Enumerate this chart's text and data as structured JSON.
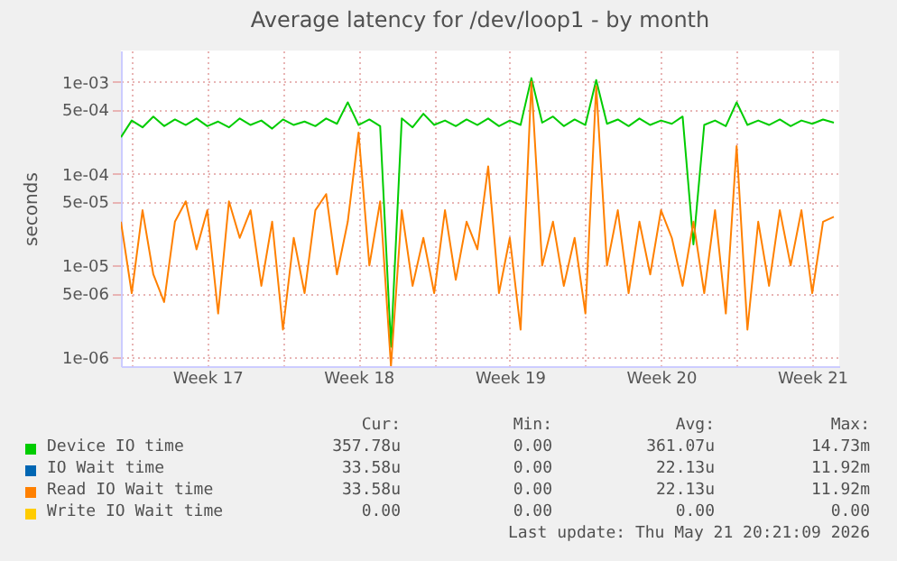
{
  "chart_data": {
    "type": "line",
    "title": "Average latency for /dev/loop1 - by month",
    "ylabel": "seconds",
    "log": "y",
    "grid": true,
    "legend": "bottom",
    "xlim": [
      "2026-04-19T12:00",
      "2026-05-22T18:00"
    ],
    "xticks": [
      {
        "value": "2026-04-20T00:00",
        "label": null
      },
      {
        "value": "2026-04-23T12:00",
        "label": "Week 17"
      },
      {
        "value": "2026-04-27T00:00",
        "label": null
      },
      {
        "value": "2026-04-30T12:00",
        "label": "Week 18"
      },
      {
        "value": "2026-05-04T00:00",
        "label": null
      },
      {
        "value": "2026-05-07T12:00",
        "label": "Week 19"
      },
      {
        "value": "2026-05-11T00:00",
        "label": null
      },
      {
        "value": "2026-05-14T12:00",
        "label": "Week 20"
      },
      {
        "value": "2026-05-18T00:00",
        "label": null
      },
      {
        "value": "2026-05-21T12:00",
        "label": "Week 21"
      }
    ],
    "ylim": [
      8e-07,
      0.0022
    ],
    "yticks": [
      {
        "value": 1e-06,
        "label": "1e-06"
      },
      {
        "value": 5e-06,
        "label": "5e-06"
      },
      {
        "value": 1e-05,
        "label": "1e-05"
      },
      {
        "value": 5e-05,
        "label": "5e-05"
      },
      {
        "value": 0.0001,
        "label": "1e-04"
      },
      {
        "value": 0.0005,
        "label": "5e-04"
      },
      {
        "value": 0.001,
        "label": "1e-03"
      }
    ],
    "x": [
      "2026-04-19T12:00",
      "2026-04-20T00:00",
      "2026-04-20T12:00",
      "2026-04-21T00:00",
      "2026-04-21T12:00",
      "2026-04-22T00:00",
      "2026-04-22T12:00",
      "2026-04-23T00:00",
      "2026-04-23T12:00",
      "2026-04-24T00:00",
      "2026-04-24T12:00",
      "2026-04-25T00:00",
      "2026-04-25T12:00",
      "2026-04-26T00:00",
      "2026-04-26T12:00",
      "2026-04-27T00:00",
      "2026-04-27T12:00",
      "2026-04-28T00:00",
      "2026-04-28T12:00",
      "2026-04-29T00:00",
      "2026-04-29T12:00",
      "2026-04-30T00:00",
      "2026-04-30T12:00",
      "2026-05-01T00:00",
      "2026-05-01T12:00",
      "2026-05-02T00:00",
      "2026-05-02T12:00",
      "2026-05-03T00:00",
      "2026-05-03T12:00",
      "2026-05-04T00:00",
      "2026-05-04T12:00",
      "2026-05-05T00:00",
      "2026-05-05T12:00",
      "2026-05-06T00:00",
      "2026-05-06T12:00",
      "2026-05-07T00:00",
      "2026-05-07T12:00",
      "2026-05-08T00:00",
      "2026-05-08T12:00",
      "2026-05-09T00:00",
      "2026-05-09T12:00",
      "2026-05-10T00:00",
      "2026-05-10T12:00",
      "2026-05-11T00:00",
      "2026-05-11T12:00",
      "2026-05-12T00:00",
      "2026-05-12T12:00",
      "2026-05-13T00:00",
      "2026-05-13T12:00",
      "2026-05-14T00:00",
      "2026-05-14T12:00",
      "2026-05-15T00:00",
      "2026-05-15T12:00",
      "2026-05-16T00:00",
      "2026-05-16T12:00",
      "2026-05-17T00:00",
      "2026-05-17T12:00",
      "2026-05-18T00:00",
      "2026-05-18T12:00",
      "2026-05-19T00:00",
      "2026-05-19T12:00",
      "2026-05-20T00:00",
      "2026-05-20T12:00",
      "2026-05-21T00:00",
      "2026-05-21T12:00",
      "2026-05-22T00:00",
      "2026-05-22T12:00"
    ],
    "series": [
      {
        "name": "Device IO time",
        "color": "#00cc00",
        "values": [
          0.00025,
          0.00038,
          0.00032,
          0.00042,
          0.00033,
          0.00039,
          0.00034,
          0.0004,
          0.00033,
          0.00037,
          0.00032,
          0.0004,
          0.00034,
          0.00038,
          0.00031,
          0.00039,
          0.00034,
          0.00037,
          0.00033,
          0.0004,
          0.00035,
          0.0006,
          0.00034,
          0.00039,
          0.00033,
          1.3e-06,
          0.0004,
          0.00032,
          0.00045,
          0.00034,
          0.00038,
          0.00033,
          0.00039,
          0.00034,
          0.0004,
          0.00033,
          0.00038,
          0.00034,
          0.0011,
          0.00036,
          0.00042,
          0.00033,
          0.00039,
          0.00034,
          0.00105,
          0.00035,
          0.00039,
          0.00033,
          0.0004,
          0.00034,
          0.00038,
          0.00035,
          0.00042,
          1.7e-05,
          0.00034,
          0.00038,
          0.00033,
          0.0006,
          0.00034,
          0.00038,
          0.00034,
          0.00039,
          0.00033,
          0.00038,
          0.00035,
          0.00039,
          0.00036
        ]
      },
      {
        "name": "IO Wait time",
        "color": "#0066b3",
        "values": [
          null,
          null,
          null,
          null,
          null,
          null,
          null,
          null,
          null,
          null,
          null,
          null,
          null,
          null,
          null,
          null,
          null,
          null,
          null,
          null,
          null,
          null,
          null,
          null,
          null,
          null,
          null,
          null,
          null,
          null,
          null,
          null,
          null,
          null,
          null,
          null,
          null,
          null,
          null,
          null,
          null,
          null,
          null,
          null,
          null,
          null,
          null,
          null,
          null,
          null,
          null,
          null,
          null,
          null,
          null,
          null,
          null,
          null,
          null,
          null,
          null,
          null,
          null,
          null,
          null,
          null,
          null
        ]
      },
      {
        "name": "Read IO Wait time",
        "color": "#ff8000",
        "values": [
          3e-05,
          5e-06,
          4e-05,
          8e-06,
          4e-06,
          3e-05,
          5e-05,
          1.5e-05,
          4e-05,
          3e-06,
          5e-05,
          2e-05,
          4e-05,
          6e-06,
          3e-05,
          2e-06,
          2e-05,
          5e-06,
          4e-05,
          6e-05,
          8e-06,
          3e-05,
          0.00028,
          1e-05,
          5e-05,
          8e-07,
          4e-05,
          6e-06,
          2e-05,
          5e-06,
          4e-05,
          7e-06,
          3e-05,
          1.5e-05,
          0.00012,
          5e-06,
          2e-05,
          2e-06,
          0.001,
          1e-05,
          3e-05,
          6e-06,
          2e-05,
          3e-06,
          0.0009,
          1e-05,
          4e-05,
          5e-06,
          3e-05,
          8e-06,
          4e-05,
          2e-05,
          6e-06,
          3e-05,
          5e-06,
          4e-05,
          3e-06,
          0.0002,
          2e-06,
          3e-05,
          6e-06,
          4e-05,
          1e-05,
          4e-05,
          5e-06,
          3e-05,
          3.4e-05
        ]
      },
      {
        "name": "Write IO Wait time",
        "color": "#ffcc00",
        "values": [
          null,
          null,
          null,
          null,
          null,
          null,
          null,
          null,
          null,
          null,
          null,
          null,
          null,
          null,
          null,
          null,
          null,
          null,
          null,
          null,
          null,
          null,
          null,
          null,
          null,
          null,
          null,
          null,
          null,
          null,
          null,
          null,
          null,
          null,
          null,
          null,
          null,
          null,
          null,
          null,
          null,
          null,
          null,
          null,
          null,
          null,
          null,
          null,
          null,
          null,
          null,
          null,
          null,
          null,
          null,
          null,
          null,
          null,
          null,
          null,
          null,
          null,
          null,
          null,
          null,
          null,
          null
        ]
      }
    ],
    "annotations": [
      "Cur:",
      "Min:",
      "Avg:",
      "Max:",
      "357.78u",
      "0.00",
      "361.07u",
      "14.73m",
      "33.58u",
      "0.00",
      "22.13u",
      "11.92m",
      "33.58u",
      "0.00",
      "22.13u",
      "11.92m",
      "0.00",
      "0.00",
      "0.00",
      "0.00",
      "Last update: Thu May 21 20:21:09 2026"
    ]
  }
}
